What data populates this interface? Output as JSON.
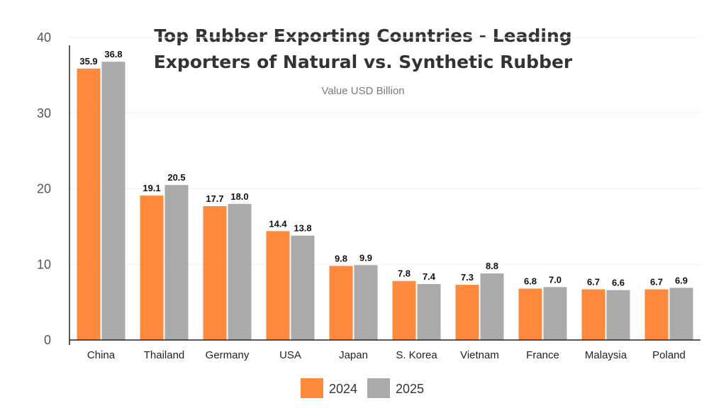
{
  "chart_data": {
    "type": "bar",
    "title_lines": [
      "Top Rubber Exporting Countries - Leading",
      "Exporters of Natural vs. Synthetic Rubber"
    ],
    "subtitle": "Value USD Billion",
    "categories": [
      "China",
      "Thailand",
      "Germany",
      "USA",
      "Japan",
      "S. Korea",
      "Vietnam",
      "France",
      "Malaysia",
      "Poland"
    ],
    "series": [
      {
        "name": "2024",
        "color": "#FF8A3D",
        "values": [
          35.9,
          19.1,
          17.7,
          14.4,
          9.8,
          7.8,
          7.3,
          6.8,
          6.7,
          6.7
        ],
        "labels": [
          "35.9",
          "19.1",
          "17.7",
          "14.4",
          "9.8",
          "7.8",
          "7.3",
          "6.8",
          "6.7",
          "6.7"
        ]
      },
      {
        "name": "2025",
        "color": "#AAAAAA",
        "values": [
          36.8,
          20.5,
          18.0,
          13.8,
          9.9,
          7.4,
          8.8,
          7.0,
          6.6,
          6.9
        ],
        "labels": [
          "36.8",
          "20.5",
          "18.0",
          "13.8",
          "9.9",
          "7.4",
          "8.8",
          "7.0",
          "6.6",
          "6.9"
        ]
      }
    ],
    "yticks": [
      "0",
      "10",
      "20",
      "30",
      "40"
    ],
    "ylim": [
      0,
      40
    ],
    "grid": true,
    "legend_position": "bottom-center"
  }
}
